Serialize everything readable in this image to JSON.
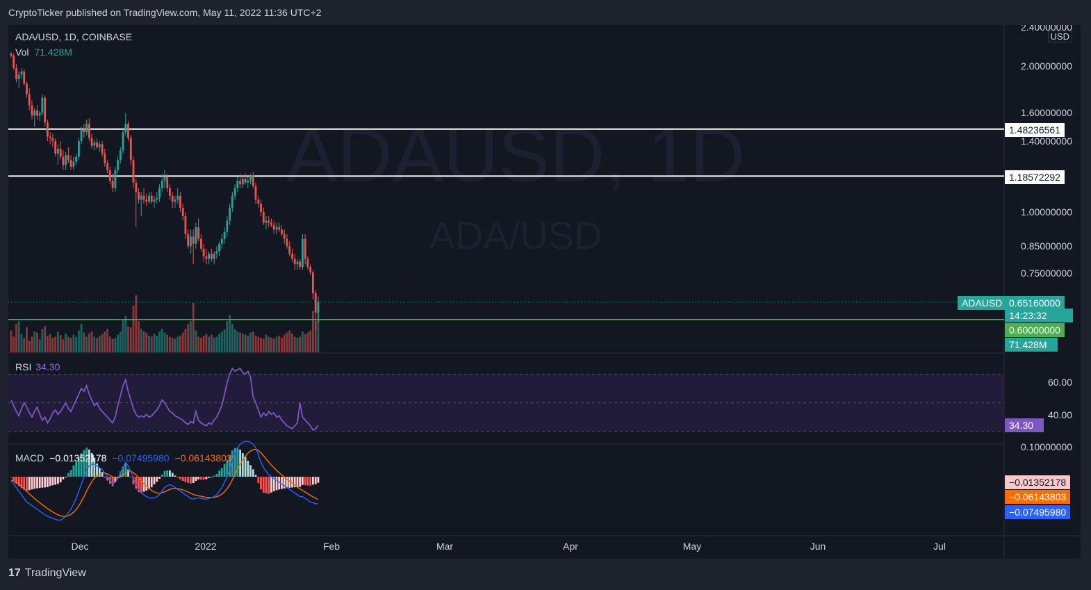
{
  "publish_line": "CryptoTicker published on TradingView.com, May 11, 2022 11:36 UTC+2",
  "legend": {
    "symbol": "ADA/USD, 1D, COINBASE",
    "vol_label": "Vol",
    "vol_value": "71.428M"
  },
  "watermark": {
    "big": "ADAUSD, 1D",
    "small": "ADA/USD"
  },
  "price_axis": {
    "currency": "USD",
    "labels": [
      "2.40000000",
      "2.00000000",
      "1.60000000",
      "1.40000000",
      "1.00000000",
      "0.85000000",
      "0.75000000"
    ]
  },
  "levels": [
    {
      "value": "1.48236561",
      "color": "#ffffff"
    },
    {
      "value": "1.18572292",
      "color": "#ffffff"
    },
    {
      "value": "0.60000000",
      "color": "#4caf50"
    }
  ],
  "last_price": {
    "symbol": "ADAUSD",
    "value": "0.65160000",
    "countdown": "14:23:32",
    "color": "#26a69a"
  },
  "volume_tag": "71.428M",
  "rsi": {
    "label": "RSI",
    "value": "34.30",
    "axis": [
      "60.00",
      "40.00"
    ],
    "tag": "34.30",
    "color": "#7e57c2",
    "band_color": "#2a1f4a"
  },
  "macd": {
    "label": "MACD",
    "hist": "−0.01352178",
    "macd": "−0.07495980",
    "signal": "−0.06143803",
    "axis_top": "0.10000000",
    "tags": [
      {
        "value": "−0.01352178",
        "bg": "#f8c7c9",
        "fg": "#131722"
      },
      {
        "value": "−0.06143803",
        "bg": "#ff6d00",
        "fg": "#ffffff"
      },
      {
        "value": "−0.07495980",
        "bg": "#2962ff",
        "fg": "#ffffff"
      }
    ]
  },
  "time_axis": [
    "Dec",
    "2022",
    "Feb",
    "Mar",
    "Apr",
    "May",
    "Jun",
    "Jul"
  ],
  "footer_brand": "TradingView",
  "colors": {
    "up": "#26a69a",
    "down": "#ef5350",
    "background": "#131722"
  },
  "candles": [
    [
      2.12,
      2.14,
      2.08,
      2.1
    ],
    [
      2.1,
      2.12,
      1.96,
      1.98
    ],
    [
      1.98,
      2.02,
      1.85,
      1.88
    ],
    [
      1.88,
      1.95,
      1.8,
      1.92
    ],
    [
      1.92,
      1.98,
      1.88,
      1.95
    ],
    [
      1.95,
      1.97,
      1.82,
      1.84
    ],
    [
      1.84,
      1.86,
      1.72,
      1.75
    ],
    [
      1.75,
      1.8,
      1.62,
      1.66
    ],
    [
      1.66,
      1.7,
      1.55,
      1.58
    ],
    [
      1.58,
      1.64,
      1.5,
      1.62
    ],
    [
      1.62,
      1.66,
      1.55,
      1.58
    ],
    [
      1.58,
      1.62,
      1.54,
      1.6
    ],
    [
      1.6,
      1.75,
      1.58,
      1.72
    ],
    [
      1.72,
      1.74,
      1.5,
      1.53
    ],
    [
      1.53,
      1.55,
      1.4,
      1.43
    ],
    [
      1.43,
      1.46,
      1.38,
      1.42
    ],
    [
      1.42,
      1.45,
      1.36,
      1.4
    ],
    [
      1.4,
      1.42,
      1.3,
      1.32
    ],
    [
      1.32,
      1.38,
      1.25,
      1.35
    ],
    [
      1.35,
      1.4,
      1.28,
      1.3
    ],
    [
      1.3,
      1.34,
      1.22,
      1.25
    ],
    [
      1.25,
      1.33,
      1.22,
      1.31
    ],
    [
      1.31,
      1.36,
      1.26,
      1.28
    ],
    [
      1.28,
      1.31,
      1.22,
      1.24
    ],
    [
      1.24,
      1.3,
      1.22,
      1.27
    ],
    [
      1.27,
      1.32,
      1.25,
      1.3
    ],
    [
      1.3,
      1.42,
      1.28,
      1.4
    ],
    [
      1.4,
      1.5,
      1.38,
      1.48
    ],
    [
      1.48,
      1.52,
      1.42,
      1.46
    ],
    [
      1.46,
      1.55,
      1.44,
      1.52
    ],
    [
      1.52,
      1.56,
      1.4,
      1.42
    ],
    [
      1.42,
      1.45,
      1.35,
      1.37
    ],
    [
      1.37,
      1.41,
      1.34,
      1.39
    ],
    [
      1.39,
      1.42,
      1.35,
      1.36
    ],
    [
      1.36,
      1.4,
      1.33,
      1.38
    ],
    [
      1.38,
      1.4,
      1.3,
      1.32
    ],
    [
      1.32,
      1.35,
      1.24,
      1.26
    ],
    [
      1.26,
      1.28,
      1.2,
      1.22
    ],
    [
      1.22,
      1.24,
      1.14,
      1.16
    ],
    [
      1.16,
      1.2,
      1.1,
      1.12
    ],
    [
      1.12,
      1.24,
      1.1,
      1.22
    ],
    [
      1.22,
      1.3,
      1.2,
      1.28
    ],
    [
      1.28,
      1.36,
      1.26,
      1.34
    ],
    [
      1.34,
      1.48,
      1.32,
      1.46
    ],
    [
      1.46,
      1.6,
      1.44,
      1.52
    ],
    [
      1.52,
      1.54,
      1.4,
      1.42
    ],
    [
      1.42,
      1.44,
      1.25,
      1.28
    ],
    [
      1.28,
      1.3,
      1.12,
      1.15
    ],
    [
      1.15,
      1.17,
      0.93,
      1.1
    ],
    [
      1.1,
      1.12,
      1.04,
      1.06
    ],
    [
      1.06,
      1.1,
      0.98,
      1.08
    ],
    [
      1.08,
      1.12,
      1.04,
      1.06
    ],
    [
      1.06,
      1.09,
      1.03,
      1.05
    ],
    [
      1.05,
      1.1,
      1.04,
      1.08
    ],
    [
      1.08,
      1.1,
      1.04,
      1.05
    ],
    [
      1.05,
      1.08,
      1.02,
      1.06
    ],
    [
      1.06,
      1.1,
      1.04,
      1.07
    ],
    [
      1.07,
      1.14,
      1.05,
      1.12
    ],
    [
      1.12,
      1.2,
      1.1,
      1.16
    ],
    [
      1.16,
      1.22,
      1.12,
      1.18
    ],
    [
      1.18,
      1.2,
      1.1,
      1.12
    ],
    [
      1.12,
      1.14,
      1.06,
      1.08
    ],
    [
      1.08,
      1.1,
      1.02,
      1.05
    ],
    [
      1.05,
      1.08,
      1.02,
      1.06
    ],
    [
      1.06,
      1.12,
      1.04,
      1.08
    ],
    [
      1.08,
      1.1,
      1.0,
      1.02
    ],
    [
      1.02,
      1.04,
      0.96,
      0.98
    ],
    [
      0.98,
      1.0,
      0.88,
      0.9
    ],
    [
      0.9,
      0.92,
      0.84,
      0.85
    ],
    [
      0.85,
      0.92,
      0.82,
      0.89
    ],
    [
      0.89,
      0.92,
      0.78,
      0.86
    ],
    [
      0.86,
      0.95,
      0.84,
      0.93
    ],
    [
      0.93,
      0.97,
      0.87,
      0.88
    ],
    [
      0.88,
      0.9,
      0.83,
      0.84
    ],
    [
      0.84,
      0.86,
      0.79,
      0.81
    ],
    [
      0.81,
      0.84,
      0.78,
      0.8
    ],
    [
      0.8,
      0.83,
      0.78,
      0.82
    ],
    [
      0.82,
      0.84,
      0.79,
      0.8
    ],
    [
      0.8,
      0.83,
      0.78,
      0.82
    ],
    [
      0.82,
      0.85,
      0.8,
      0.83
    ],
    [
      0.83,
      0.87,
      0.81,
      0.86
    ],
    [
      0.86,
      0.9,
      0.84,
      0.88
    ],
    [
      0.88,
      0.93,
      0.86,
      0.91
    ],
    [
      0.91,
      0.98,
      0.89,
      0.96
    ],
    [
      0.96,
      1.04,
      0.94,
      1.02
    ],
    [
      1.02,
      1.1,
      1.0,
      1.08
    ],
    [
      1.08,
      1.14,
      1.06,
      1.12
    ],
    [
      1.12,
      1.18,
      1.1,
      1.16
    ],
    [
      1.16,
      1.2,
      1.12,
      1.14
    ],
    [
      1.14,
      1.19,
      1.12,
      1.17
    ],
    [
      1.17,
      1.2,
      1.14,
      1.15
    ],
    [
      1.15,
      1.18,
      1.12,
      1.16
    ],
    [
      1.16,
      1.2,
      1.14,
      1.19
    ],
    [
      1.19,
      1.21,
      1.12,
      1.13
    ],
    [
      1.13,
      1.15,
      1.04,
      1.06
    ],
    [
      1.06,
      1.08,
      1.02,
      1.04
    ],
    [
      1.04,
      1.06,
      0.98,
      1.0
    ],
    [
      1.0,
      1.02,
      0.94,
      0.95
    ],
    [
      0.95,
      0.98,
      0.92,
      0.96
    ],
    [
      0.96,
      0.98,
      0.93,
      0.95
    ],
    [
      0.95,
      0.97,
      0.93,
      0.94
    ],
    [
      0.94,
      0.96,
      0.9,
      0.92
    ],
    [
      0.92,
      0.95,
      0.9,
      0.93
    ],
    [
      0.93,
      0.95,
      0.91,
      0.92
    ],
    [
      0.92,
      0.94,
      0.89,
      0.9
    ],
    [
      0.9,
      0.92,
      0.86,
      0.88
    ],
    [
      0.88,
      0.9,
      0.84,
      0.85
    ],
    [
      0.85,
      0.87,
      0.81,
      0.82
    ],
    [
      0.82,
      0.84,
      0.79,
      0.8
    ],
    [
      0.8,
      0.82,
      0.76,
      0.78
    ],
    [
      0.78,
      0.8,
      0.76,
      0.79
    ],
    [
      0.79,
      0.8,
      0.76,
      0.77
    ],
    [
      0.77,
      0.9,
      0.76,
      0.88
    ],
    [
      0.88,
      0.9,
      0.78,
      0.8
    ],
    [
      0.8,
      0.81,
      0.76,
      0.77
    ],
    [
      0.77,
      0.78,
      0.74,
      0.75
    ],
    [
      0.75,
      0.76,
      0.66,
      0.68
    ],
    [
      0.68,
      0.69,
      0.57,
      0.62
    ],
    [
      0.62,
      0.67,
      0.59,
      0.6516
    ]
  ],
  "volumes": [
    42,
    30,
    55,
    60,
    35,
    28,
    48,
    22,
    30,
    40,
    38,
    25,
    45,
    50,
    32,
    35,
    28,
    30,
    40,
    33,
    25,
    36,
    30,
    28,
    34,
    30,
    42,
    55,
    38,
    30,
    36,
    40,
    30,
    28,
    32,
    35,
    40,
    45,
    30,
    26,
    28,
    34,
    40,
    62,
    70,
    50,
    48,
    90,
    110,
    60,
    45,
    40,
    38,
    32,
    30,
    36,
    32,
    40,
    45,
    38,
    34,
    30,
    28,
    26,
    30,
    32,
    38,
    45,
    55,
    60,
    95,
    42,
    30,
    28,
    32,
    35,
    30,
    34,
    28,
    30,
    36,
    40,
    44,
    60,
    72,
    55,
    45,
    40,
    38,
    36,
    34,
    32,
    38,
    40,
    32,
    30,
    28,
    26,
    34,
    30,
    28,
    26,
    30,
    32,
    28,
    34,
    38,
    42,
    36,
    30,
    28,
    30,
    40,
    35,
    38,
    42,
    80,
    60,
    88
  ],
  "rsi_values": [
    52,
    48,
    44,
    41,
    46,
    50,
    47,
    43,
    40,
    44,
    47,
    42,
    38,
    40,
    36,
    39,
    43,
    45,
    42,
    44,
    47,
    50,
    46,
    44,
    48,
    52,
    56,
    60,
    58,
    62,
    56,
    52,
    48,
    50,
    46,
    44,
    42,
    40,
    38,
    36,
    40,
    48,
    55,
    62,
    66,
    58,
    52,
    46,
    42,
    40,
    41,
    40,
    42,
    40,
    41,
    43,
    45,
    48,
    52,
    50,
    47,
    44,
    43,
    41,
    40,
    39,
    38,
    36,
    35,
    37,
    36,
    44,
    38,
    36,
    35,
    34,
    36,
    35,
    38,
    40,
    44,
    48,
    56,
    64,
    70,
    74,
    72,
    73,
    74,
    71,
    70,
    72,
    68,
    54,
    50,
    45,
    40,
    43,
    41,
    44,
    42,
    43,
    40,
    41,
    38,
    36,
    34,
    33,
    32,
    34,
    36,
    50,
    40,
    38,
    36,
    34,
    31,
    32,
    34.3
  ],
  "macd_values": [
    -0.01,
    -0.02,
    -0.03,
    -0.04,
    -0.05,
    -0.06,
    -0.07,
    -0.075,
    -0.08,
    -0.085,
    -0.09,
    -0.095,
    -0.1,
    -0.105,
    -0.11,
    -0.112,
    -0.115,
    -0.118,
    -0.12,
    -0.12,
    -0.115,
    -0.11,
    -0.1,
    -0.09,
    -0.075,
    -0.06,
    -0.04,
    -0.02,
    0.0,
    0.02,
    0.03,
    0.035,
    0.035,
    0.03,
    0.025,
    0.02,
    0.01,
    0.0,
    -0.01,
    -0.02,
    -0.015,
    -0.005,
    0.01,
    0.025,
    0.04,
    0.03,
    0.015,
    -0.005,
    -0.02,
    -0.035,
    -0.045,
    -0.05,
    -0.055,
    -0.058,
    -0.06,
    -0.058,
    -0.055,
    -0.05,
    -0.04,
    -0.03,
    -0.025,
    -0.022,
    -0.025,
    -0.03,
    -0.035,
    -0.04,
    -0.045,
    -0.05,
    -0.055,
    -0.06,
    -0.062,
    -0.06,
    -0.058,
    -0.06,
    -0.062,
    -0.062,
    -0.06,
    -0.058,
    -0.055,
    -0.05,
    -0.04,
    -0.03,
    -0.015,
    0.0,
    0.02,
    0.045,
    0.065,
    0.08,
    0.09,
    0.095,
    0.098,
    0.098,
    0.095,
    0.09,
    0.08,
    0.06,
    0.04,
    0.025,
    0.015,
    0.005,
    0.0,
    -0.005,
    -0.01,
    -0.015,
    -0.02,
    -0.025,
    -0.03,
    -0.035,
    -0.04,
    -0.045,
    -0.05,
    -0.055,
    -0.055,
    -0.06,
    -0.065,
    -0.07,
    -0.072,
    -0.075,
    -0.07496
  ]
}
